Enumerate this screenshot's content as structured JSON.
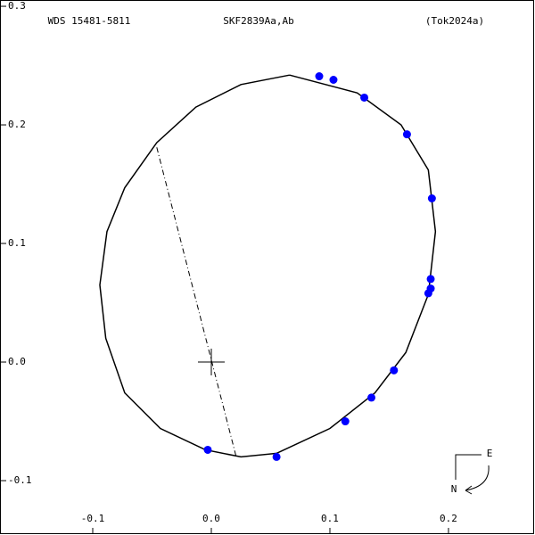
{
  "chart_data": {
    "type": "scatter",
    "title": "SKF2839Aa,Ab",
    "subtitle": "WDS 15481-5811",
    "reference": "(Tok2024a)",
    "xlim": [
      -0.1782,
      0.2722
    ],
    "ylim": [
      -0.1451,
      0.3053
    ],
    "xticks": [
      -0.1,
      {
        "value": 0,
        "label": "0.0"
      },
      0.1,
      0.2
    ],
    "yticks": [
      -0.1,
      {
        "value": 0,
        "label": "0.0"
      },
      0.1,
      0.2,
      0.3
    ],
    "series": [
      {
        "color": "#0000ff",
        "x": [
          0.091,
          0.103,
          0.129,
          0.165,
          0.186,
          0.185,
          0.185,
          0.183,
          0.154,
          0.135,
          0.113,
          0.055,
          -0.003
        ],
        "y": [
          0.241,
          0.238,
          0.223,
          0.192,
          0.138,
          0.07,
          0.062,
          0.058,
          -0.007,
          -0.03,
          -0.05,
          -0.08,
          -0.074
        ]
      }
    ],
    "orbit": {
      "x": [
        0.066,
        0.123,
        0.16,
        0.183,
        0.189,
        0.183,
        0.164,
        0.138,
        0.1,
        0.055,
        0.025,
        -0.005,
        -0.043,
        -0.073,
        -0.089,
        -0.094,
        -0.088,
        -0.073,
        -0.046,
        -0.013,
        0.025,
        0.066
      ],
      "y": [
        0.242,
        0.227,
        0.2,
        0.162,
        0.11,
        0.057,
        0.008,
        -0.026,
        -0.056,
        -0.077,
        -0.08,
        -0.074,
        -0.056,
        -0.026,
        0.02,
        0.065,
        0.11,
        0.147,
        0.185,
        0.215,
        0.234,
        0.242
      ]
    },
    "node_line": {
      "x": [
        -0.046,
        0.021
      ],
      "y": [
        0.181,
        -0.08
      ]
    },
    "compass": {
      "east": "E",
      "north": "N"
    }
  }
}
